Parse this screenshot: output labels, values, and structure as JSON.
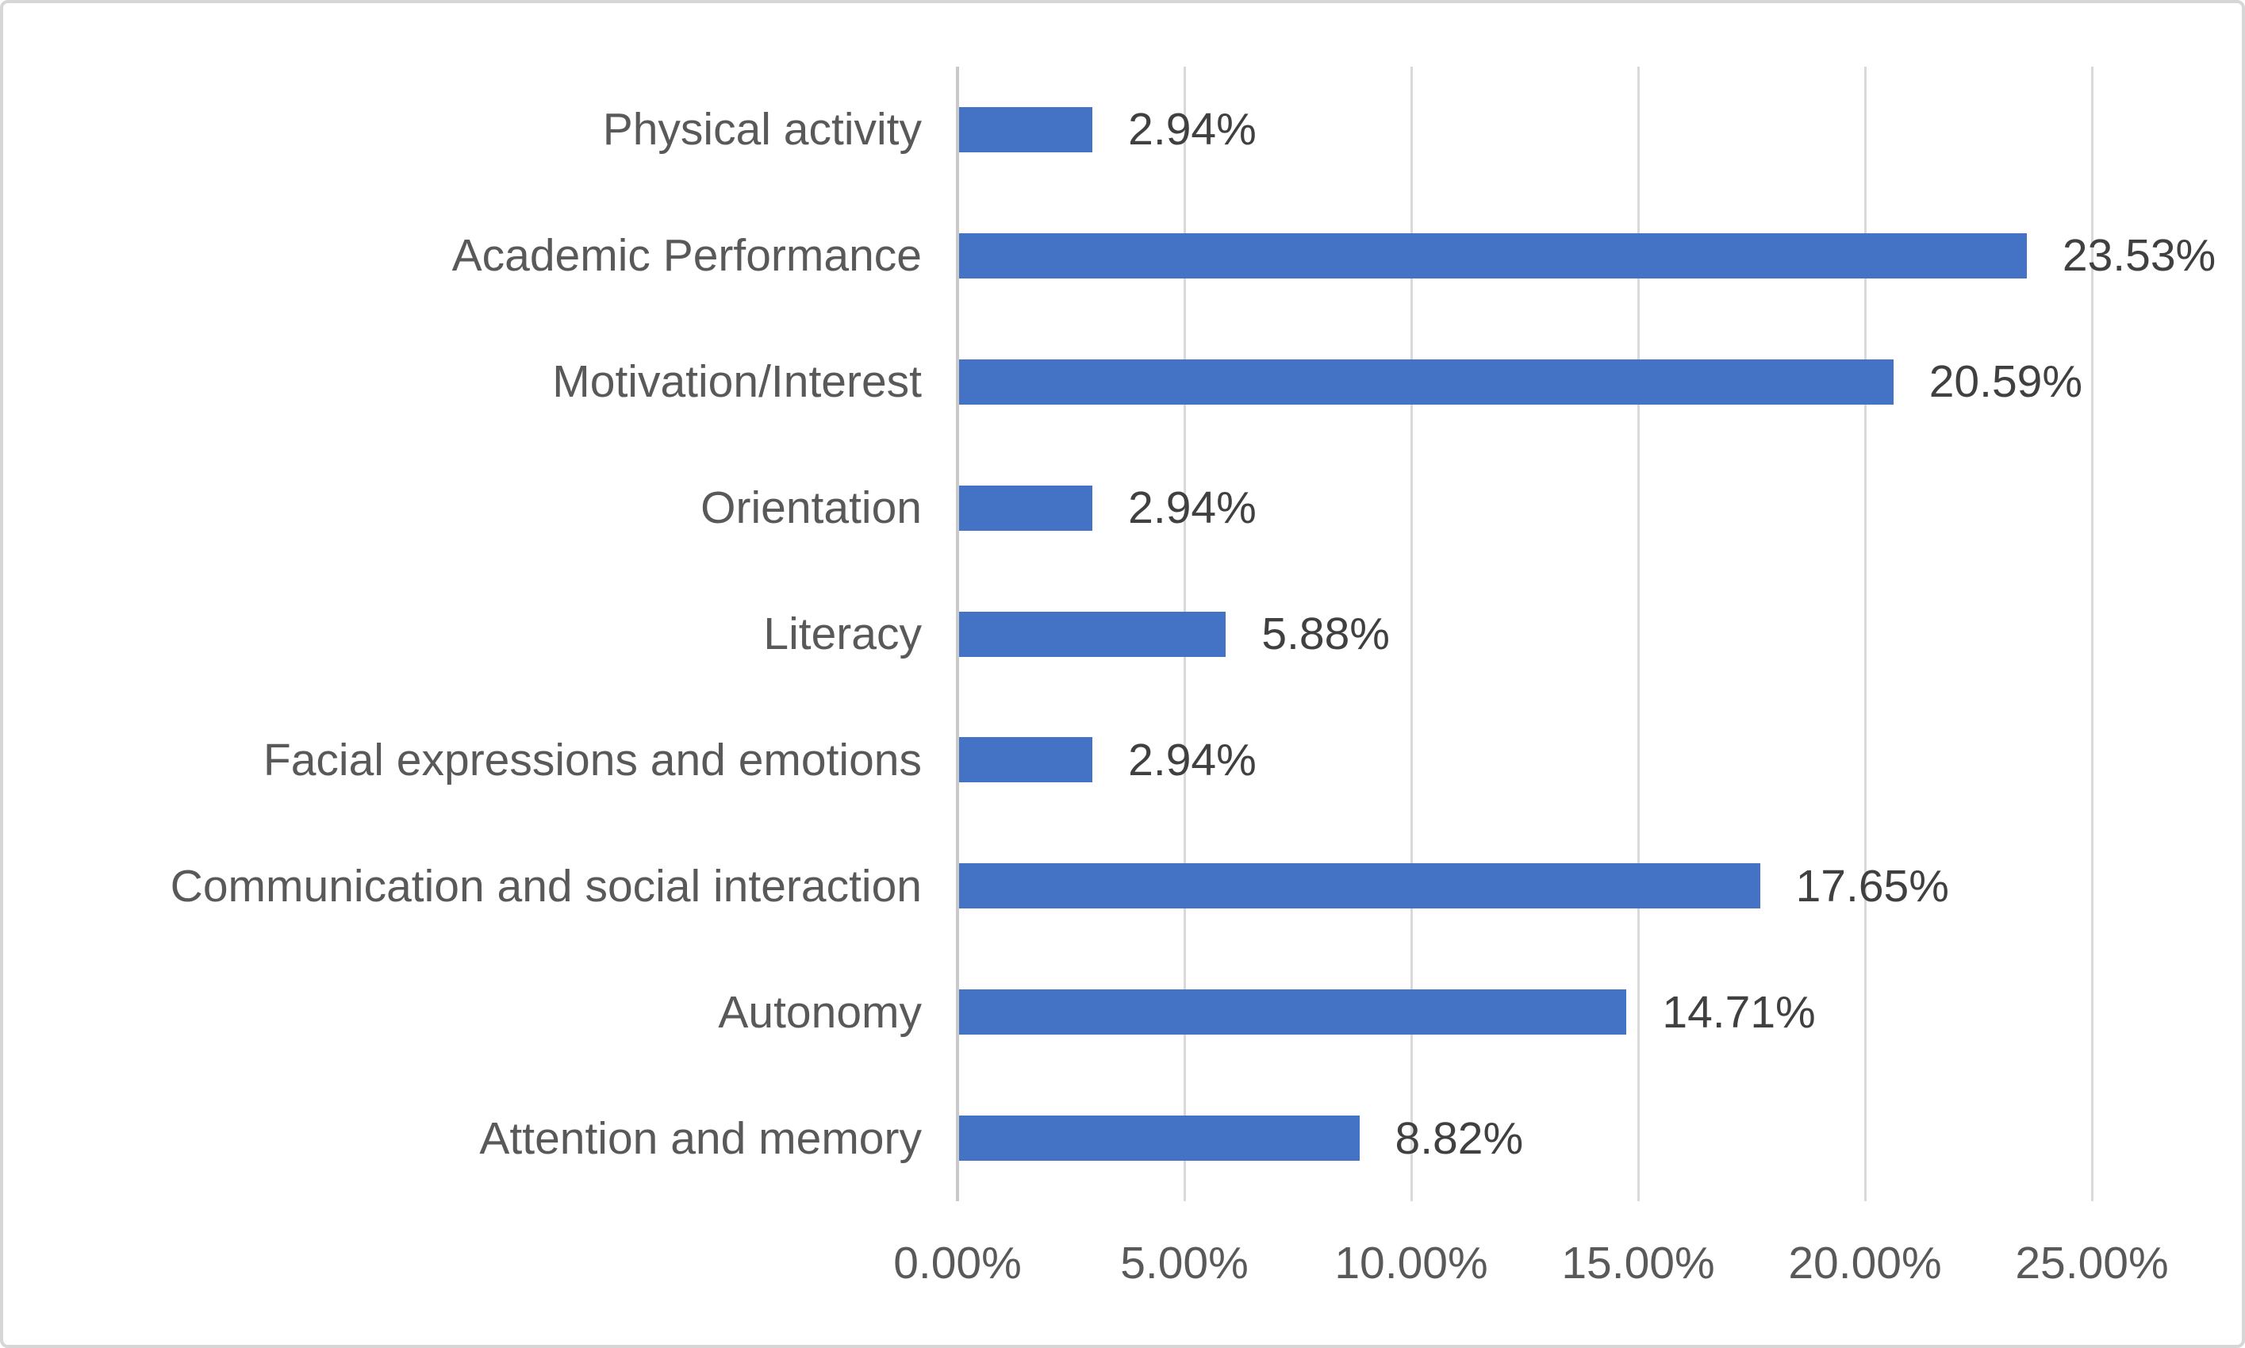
{
  "figure": {
    "background_color": "#FFFFFF",
    "border_color": "#D6D6D6"
  },
  "chart_data": {
    "type": "bar",
    "orientation": "horizontal",
    "title": "",
    "legend": "none",
    "grid": "vertical-only",
    "categories": [
      "Physical activity",
      "Academic Performance",
      "Motivation/Interest",
      "Orientation",
      "Literacy",
      "Facial expressions and emotions",
      "Communication and social interaction",
      "Autonomy",
      "Attention and memory"
    ],
    "values": [
      2.94,
      23.53,
      20.59,
      2.94,
      5.88,
      2.94,
      17.65,
      14.71,
      8.82
    ],
    "value_labels": [
      "2.94%",
      "23.53%",
      "20.59%",
      "2.94%",
      "5.88%",
      "2.94%",
      "17.65%",
      "14.71%",
      "8.82%"
    ],
    "xlim": [
      0,
      25
    ],
    "x_ticks": [
      0,
      5,
      10,
      15,
      20,
      25
    ],
    "x_tick_labels": [
      "0.00%",
      "5.00%",
      "10.00%",
      "15.00%",
      "20.00%",
      "25.00%"
    ],
    "bar_color": "#4472C4",
    "gridline_color": "#D9D9D9",
    "axis_line_color": "#C9C9C9",
    "category_label_color": "#595959",
    "tick_label_color": "#595959",
    "value_label_color": "#404040"
  }
}
